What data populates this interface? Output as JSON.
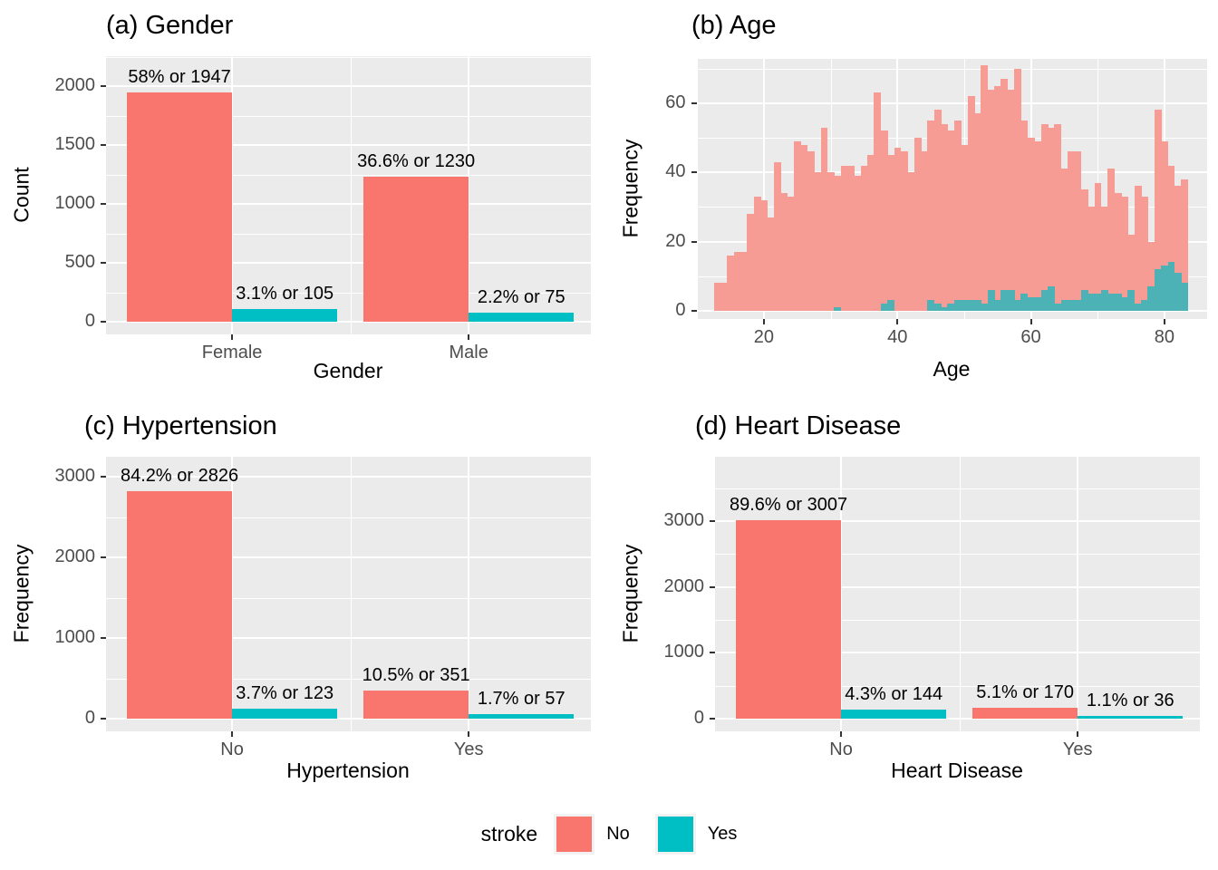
{
  "colors": {
    "no": "#F8766D",
    "yes": "#00BFC4",
    "hist_no": "#F79B95",
    "hist_yes": "#4CB2B5",
    "panel_bg": "#EBEBEB",
    "grid": "#FFFFFF",
    "axis_text": "#4D4D4D",
    "tick_mark": "#333333"
  },
  "legend": {
    "title": "stroke",
    "items": [
      {
        "label": "No",
        "color": "#F8766D"
      },
      {
        "label": "Yes",
        "color": "#00BFC4"
      }
    ]
  },
  "chart_data": [
    {
      "id": "a",
      "type": "bar",
      "title": "(a) Gender",
      "xlabel": "Gender",
      "ylabel": "Count",
      "legend_title": "stroke",
      "categories": [
        "Female",
        "Male"
      ],
      "series": [
        {
          "name": "No",
          "values": [
            1947,
            1230
          ],
          "labels": [
            "58% or 1947",
            "36.6% or 1230"
          ]
        },
        {
          "name": "Yes",
          "values": [
            105,
            75
          ],
          "labels": [
            "3.1% or 105",
            "2.2% or 75"
          ]
        }
      ],
      "yticks": [
        0,
        500,
        1000,
        1500,
        2000
      ],
      "ylim": [
        0,
        2254
      ],
      "grid": true
    },
    {
      "id": "b",
      "type": "histogram",
      "title": "(b) Age",
      "xlabel": "Age",
      "ylabel": "Frequency",
      "legend_title": "stroke",
      "bin_width": 1,
      "bin_start_age": 13,
      "ages": [
        13,
        14,
        15,
        16,
        17,
        18,
        19,
        20,
        21,
        22,
        23,
        24,
        25,
        26,
        27,
        28,
        29,
        30,
        31,
        32,
        33,
        34,
        35,
        36,
        37,
        38,
        39,
        40,
        41,
        42,
        43,
        44,
        45,
        46,
        47,
        48,
        49,
        50,
        51,
        52,
        53,
        54,
        55,
        56,
        57,
        58,
        59,
        60,
        61,
        62,
        63,
        64,
        65,
        66,
        67,
        68,
        69,
        70,
        71,
        72,
        73,
        74,
        75,
        76,
        77,
        78,
        79,
        80,
        81,
        82,
        83
      ],
      "series": [
        {
          "name": "No",
          "values": [
            8,
            8,
            16,
            17,
            17,
            28,
            33,
            32,
            27,
            43,
            34,
            33,
            49,
            48,
            46,
            40,
            53,
            40,
            39,
            42,
            42,
            39,
            42,
            45,
            63,
            52,
            45,
            47,
            46,
            40,
            50,
            46,
            55,
            58,
            54,
            52,
            55,
            48,
            62,
            57,
            71,
            64,
            65,
            67,
            64,
            70,
            55,
            50,
            49,
            54,
            53,
            54,
            41,
            46,
            46,
            35,
            30,
            37,
            30,
            41,
            34,
            33,
            22,
            36,
            33,
            20,
            58,
            49,
            42,
            36,
            38
          ]
        },
        {
          "name": "Yes",
          "values": [
            0,
            0,
            0,
            0,
            0,
            0,
            0,
            0,
            0,
            0,
            0,
            0,
            0,
            0,
            0,
            0,
            0,
            0,
            1,
            0,
            0,
            0,
            0,
            0,
            0,
            2,
            3,
            0,
            0,
            0,
            0,
            0,
            3,
            2,
            1,
            2,
            3,
            3,
            3,
            3,
            2,
            6,
            3,
            6,
            6,
            3,
            5,
            4,
            4,
            6,
            7,
            2,
            3,
            3,
            3,
            6,
            5,
            5,
            6,
            5,
            5,
            4,
            6,
            2,
            3,
            7,
            12,
            13,
            14,
            11,
            8
          ]
        }
      ],
      "xticks": [
        20,
        40,
        60,
        80
      ],
      "yticks": [
        0,
        20,
        40,
        60
      ],
      "xlim": [
        9.9,
        86.4
      ],
      "ylim": [
        -2.4,
        72.8
      ],
      "grid": true
    },
    {
      "id": "c",
      "type": "bar",
      "title": "(c) Hypertension",
      "xlabel": "Hypertension",
      "ylabel": "Frequency",
      "legend_title": "stroke",
      "categories": [
        "No",
        "Yes"
      ],
      "series": [
        {
          "name": "No",
          "values": [
            2826,
            351
          ],
          "labels": [
            "84.2% or 2826",
            "10.5% or 351"
          ]
        },
        {
          "name": "Yes",
          "values": [
            123,
            57
          ],
          "labels": [
            "3.7% or 123",
            "1.7% or 57"
          ]
        }
      ],
      "yticks": [
        0,
        1000,
        2000,
        3000
      ],
      "ylim": [
        0,
        3251
      ],
      "grid": true
    },
    {
      "id": "d",
      "type": "bar",
      "title": "(d) Heart Disease",
      "xlabel": "Heart Disease",
      "ylabel": "Frequency",
      "legend_title": "stroke",
      "categories": [
        "No",
        "Yes"
      ],
      "series": [
        {
          "name": "No",
          "values": [
            3007,
            170
          ],
          "labels": [
            "89.6% or 3007",
            "5.1% or 170"
          ]
        },
        {
          "name": "Yes",
          "values": [
            144,
            36
          ],
          "labels": [
            "4.3% or 144",
            "1.1% or 36"
          ]
        }
      ],
      "yticks": [
        0,
        1000,
        2000,
        3000
      ],
      "ylim": [
        0,
        3975
      ],
      "grid": true
    }
  ]
}
